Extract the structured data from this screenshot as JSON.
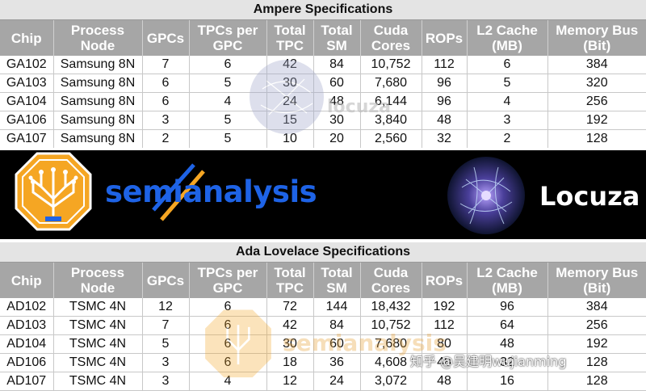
{
  "ampere": {
    "title": "Ampere Specifications",
    "headers": [
      [
        "Chip",
        ""
      ],
      [
        "Process",
        "Node"
      ],
      [
        "GPCs",
        ""
      ],
      [
        "TPCs per",
        "GPC"
      ],
      [
        "Total",
        "TPC"
      ],
      [
        "Total",
        "SM"
      ],
      [
        "Cuda",
        "Cores"
      ],
      [
        "ROPs",
        ""
      ],
      [
        "L2 Cache",
        "(MB)"
      ],
      [
        "Memory Bus",
        "(Bit)"
      ]
    ],
    "rows": [
      [
        "GA102",
        "Samsung 8N",
        "7",
        "6",
        "42",
        "84",
        "10,752",
        "112",
        "6",
        "384"
      ],
      [
        "GA103",
        "Samsung 8N",
        "6",
        "5",
        "30",
        "60",
        "7,680",
        "96",
        "5",
        "320"
      ],
      [
        "GA104",
        "Samsung 8N",
        "6",
        "4",
        "24",
        "48",
        "6,144",
        "96",
        "4",
        "256"
      ],
      [
        "GA106",
        "Samsung 8N",
        "3",
        "5",
        "15",
        "30",
        "3,840",
        "48",
        "3",
        "192"
      ],
      [
        "GA107",
        "Samsung 8N",
        "2",
        "5",
        "10",
        "20",
        "2,560",
        "32",
        "2",
        "128"
      ]
    ]
  },
  "ada": {
    "title": "Ada Lovelace Specifications",
    "headers": [
      [
        "Chip",
        ""
      ],
      [
        "Process",
        "Node"
      ],
      [
        "GPCs",
        ""
      ],
      [
        "TPCs per",
        "GPC"
      ],
      [
        "Total",
        "TPC"
      ],
      [
        "Total",
        "SM"
      ],
      [
        "Cuda",
        "Cores"
      ],
      [
        "ROPs",
        ""
      ],
      [
        "L2 Cache",
        "(MB)"
      ],
      [
        "Memory Bus",
        "(Bit)"
      ]
    ],
    "rows": [
      [
        "AD102",
        "TSMC 4N",
        "12",
        "6",
        "72",
        "144",
        "18,432",
        "192",
        "96",
        "384"
      ],
      [
        "AD103",
        "TSMC 4N",
        "7",
        "6",
        "42",
        "84",
        "10,752",
        "112",
        "64",
        "256"
      ],
      [
        "AD104",
        "TSMC 4N",
        "5",
        "6",
        "30",
        "60",
        "7,680",
        "80",
        "48",
        "192"
      ],
      [
        "AD106",
        "TSMC 4N",
        "3",
        "6",
        "18",
        "36",
        "4,608",
        "48",
        "32",
        "128"
      ],
      [
        "AD107",
        "TSMC 4N",
        "3",
        "4",
        "12",
        "24",
        "3,072",
        "48",
        "16",
        "128"
      ]
    ]
  },
  "banner": {
    "semianalysis_text": "semianalysis",
    "locuza_text": "Locuza"
  },
  "watermarks": {
    "locuza": "locuza",
    "semianalysis": "semianalysis",
    "zhihu": "知乎 @吴建明wujianming"
  },
  "colors": {
    "header_bg": "#a6a6a6",
    "title_bg": "#e4e4e4",
    "banner_bg": "#000000",
    "semianalysis_blue": "#1e63e6",
    "semianalysis_orange": "#f5a623"
  }
}
